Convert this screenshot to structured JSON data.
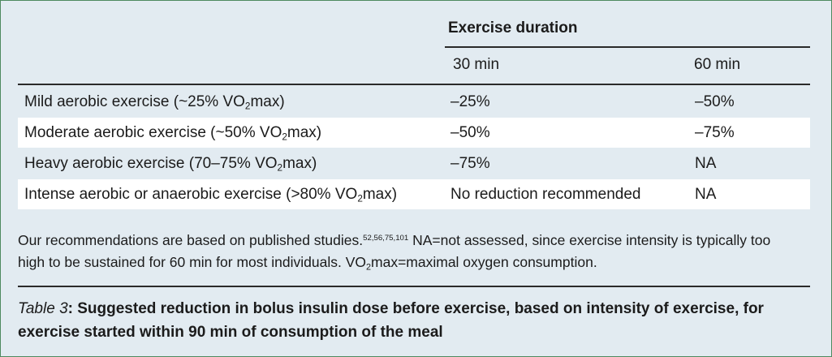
{
  "table": {
    "group_header": "Exercise duration",
    "columns": [
      "30 min",
      "60 min"
    ],
    "rows": [
      {
        "intensity": {
          "before": "Mild aerobic exercise (~25% VO",
          "sub": "2",
          "after": "max)"
        },
        "min30": "–25%",
        "min60": "–50%"
      },
      {
        "intensity": {
          "before": "Moderate aerobic exercise (~50% VO",
          "sub": "2",
          "after": "max)"
        },
        "min30": "–50%",
        "min60": "–75%"
      },
      {
        "intensity": {
          "before": "Heavy aerobic exercise (70–75% VO",
          "sub": "2",
          "after": "max)"
        },
        "min30": "–75%",
        "min60": "NA"
      },
      {
        "intensity": {
          "before": "Intense aerobic or anaerobic exercise (>80% VO",
          "sub": "2",
          "after": "max)"
        },
        "min30": "No reduction recommended",
        "min60": "NA"
      }
    ]
  },
  "footnote": {
    "line1_text": "Our recommendations are based on published studies.",
    "references": "52,56,75,101",
    "line1_rest": "NA=not assessed, since exercise intensity is typically too",
    "line2_text": "high to be sustained for 60 min for most individuals. VO",
    "line2_sub": "2",
    "line2_rest": "max=maximal oxygen consumption."
  },
  "caption": {
    "label": "Table 3",
    "line1": ": Suggested reduction in bolus insulin dose before exercise, based on intensity of exercise, for",
    "line2": "exercise started within 90 min of consumption of the meal"
  },
  "colors": {
    "background": "#e2ebf1",
    "stripe": "#ffffff",
    "rule": "#2a2a2a",
    "ink": "#1b1b1b",
    "frame": "#4e8a60"
  }
}
